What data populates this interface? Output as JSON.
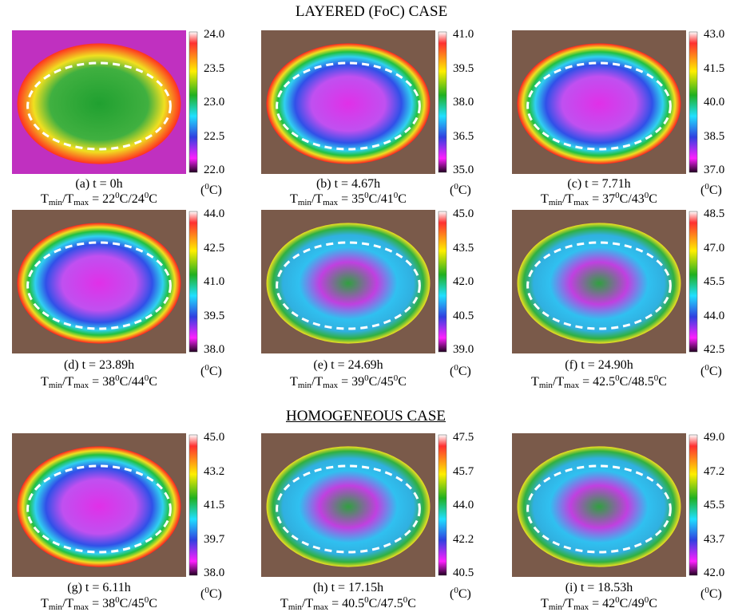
{
  "title": "LAYERED (FoC) CASE",
  "section_title": "HOMOGENEOUS CASE",
  "notation": {
    "T": "T",
    "min": "min",
    "max": "max",
    "slash": "/",
    "eq": "=",
    "deg": "0",
    "unit": "C",
    "open": "(",
    "close": ")"
  },
  "panels": [
    {
      "caption": "(a) t = 0h",
      "colorbar_ticks": [
        "24.0",
        "23.5",
        "23.0",
        "22.5",
        "22.0"
      ],
      "tmin": "22",
      "tmax": "24"
    },
    {
      "caption": "(b) t = 4.67h",
      "colorbar_ticks": [
        "41.0",
        "39.5",
        "38.0",
        "36.5",
        "35.0"
      ],
      "tmin": "35",
      "tmax": "41"
    },
    {
      "caption": "(c) t = 7.71h",
      "colorbar_ticks": [
        "43.0",
        "41.5",
        "40.0",
        "38.5",
        "37.0"
      ],
      "tmin": "37",
      "tmax": "43"
    },
    {
      "caption": "(d) t = 23.89h",
      "colorbar_ticks": [
        "44.0",
        "42.5",
        "41.0",
        "39.5",
        "38.0"
      ],
      "tmin": "38",
      "tmax": "44"
    },
    {
      "caption": "(e) t = 24.69h",
      "colorbar_ticks": [
        "45.0",
        "43.5",
        "42.0",
        "40.5",
        "39.0"
      ],
      "tmin": "39",
      "tmax": "45"
    },
    {
      "caption": "(f) t = 24.90h",
      "colorbar_ticks": [
        "48.5",
        "47.0",
        "45.5",
        "44.0",
        "42.5"
      ],
      "tmin": "42.5",
      "tmax": "48.5"
    },
    {
      "caption": "(g) t = 6.11h",
      "colorbar_ticks": [
        "45.0",
        "43.2",
        "41.5",
        "39.7",
        "38.0"
      ],
      "tmin": "38",
      "tmax": "45"
    },
    {
      "caption": "(h) t = 17.15h",
      "colorbar_ticks": [
        "47.5",
        "45.7",
        "44.0",
        "42.2",
        "40.5"
      ],
      "tmin": "40.5",
      "tmax": "47.5"
    },
    {
      "caption": "(i) t = 18.53h",
      "colorbar_ticks": [
        "49.0",
        "47.2",
        "45.5",
        "43.7",
        "42.0"
      ],
      "tmin": "42",
      "tmax": "49"
    }
  ]
}
